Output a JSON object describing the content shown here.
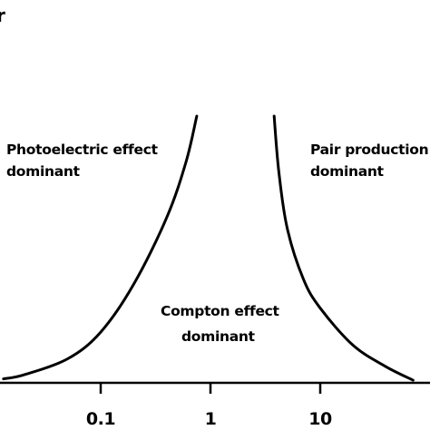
{
  "chart_data": {
    "type": "line",
    "title_fragment": "r",
    "x_scale": "log",
    "xlim": [
      0.01,
      100
    ],
    "ylim": [
      0,
      100
    ],
    "x_ticks": [
      {
        "value": 0.1,
        "label": "0.1"
      },
      {
        "value": 1,
        "label": "1"
      },
      {
        "value": 10,
        "label": "10"
      }
    ],
    "series": [
      {
        "x": [
          0.013,
          0.02,
          0.05,
          0.1,
          0.2,
          0.4,
          0.6,
          0.75
        ],
        "y": [
          1.5,
          3,
          9,
          19,
          37,
          62,
          83,
          100
        ]
      },
      {
        "x": [
          3.8,
          4.2,
          5,
          7,
          10,
          20,
          40,
          70
        ],
        "y": [
          100,
          79,
          58,
          39,
          28,
          14,
          6,
          1
        ]
      }
    ],
    "annotations": [
      {
        "id": "photoelectric",
        "lines": [
          "Photoelectric effect",
          "dominant"
        ]
      },
      {
        "id": "compton",
        "lines": [
          "Compton effect",
          "dominant"
        ]
      },
      {
        "id": "pair",
        "lines": [
          "Pair production",
          "dominant"
        ]
      }
    ],
    "grid": false,
    "legend": "none",
    "line_color": "#000000"
  }
}
